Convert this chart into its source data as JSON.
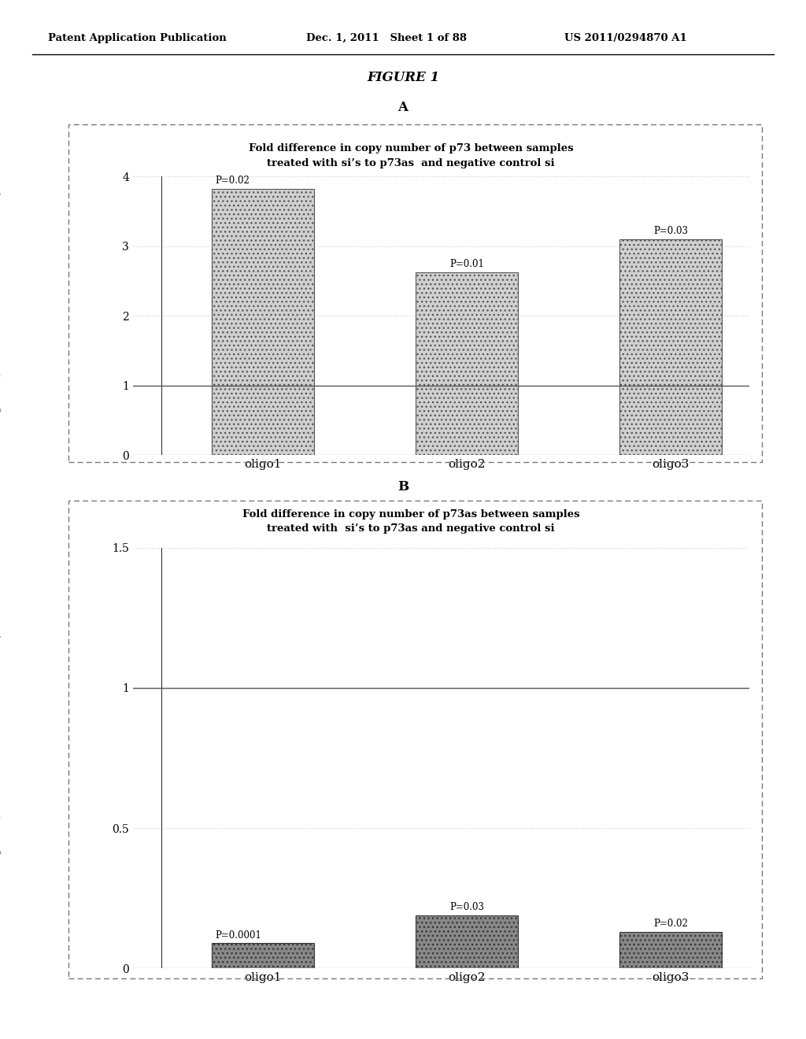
{
  "header_left": "Patent Application Publication",
  "header_mid": "Dec. 1, 2011   Sheet 1 of 88",
  "header_right": "US 2011/0294870 A1",
  "figure_title": "FIGURE 1",
  "panel_A_label": "A",
  "panel_B_label": "B",
  "panel_A": {
    "title_line1": "Fold difference in copy number of p73 between samples",
    "title_line2": "treated with si’s to p73as  and negative control si",
    "categories": [
      "oligo1",
      "oligo2",
      "oligo3"
    ],
    "values": [
      3.82,
      2.62,
      3.1
    ],
    "pvalues": [
      "P=0.02",
      "P=0.01",
      "P=0.03"
    ],
    "ylim": [
      0,
      4
    ],
    "yticks": [
      0,
      1,
      2,
      3,
      4
    ],
    "hlines": [
      1,
      2,
      3,
      4
    ],
    "ylabel_chars": [
      "F",
      "o",
      "l",
      "d",
      " ",
      "d",
      "i",
      "f",
      "f",
      "e",
      "r",
      "e",
      "n",
      "c",
      "e",
      " ",
      "i",
      "n",
      " ",
      "c",
      "o",
      "p",
      "y",
      " ",
      "n",
      "u",
      "m",
      "b",
      "e",
      "r"
    ],
    "bar_color": "#c8c8c8",
    "ref_line": 1
  },
  "panel_B": {
    "title_line1": "Fold difference in copy number of p73as between samples",
    "title_line2": "treated with  si’s to p73as and negative control si",
    "categories": [
      "oligo1",
      "oligo2",
      "oligo3"
    ],
    "values": [
      0.09,
      0.19,
      0.13
    ],
    "pvalues": [
      "P=0.0001",
      "P=0.03",
      "P=0.02"
    ],
    "ylim": [
      0,
      1.5
    ],
    "yticks": [
      0,
      0.5,
      1,
      1.5
    ],
    "hlines": [
      0.5,
      1.0,
      1.5
    ],
    "ylabel_chars": [
      "F",
      "o",
      "l",
      "d",
      " ",
      "d",
      "i",
      "f",
      "f",
      "e",
      "r",
      "e",
      "n",
      "c",
      "e",
      " ",
      "i",
      "n",
      " ",
      "c",
      "o",
      "p",
      "y",
      " ",
      "n",
      "u",
      "m",
      "b",
      "e",
      "r"
    ],
    "bar_color": "#888888",
    "ref_line": 1
  },
  "background_color": "#ffffff",
  "plot_bg_color": "#ffffff",
  "border_color": "#777777",
  "grid_color": "#cccccc"
}
